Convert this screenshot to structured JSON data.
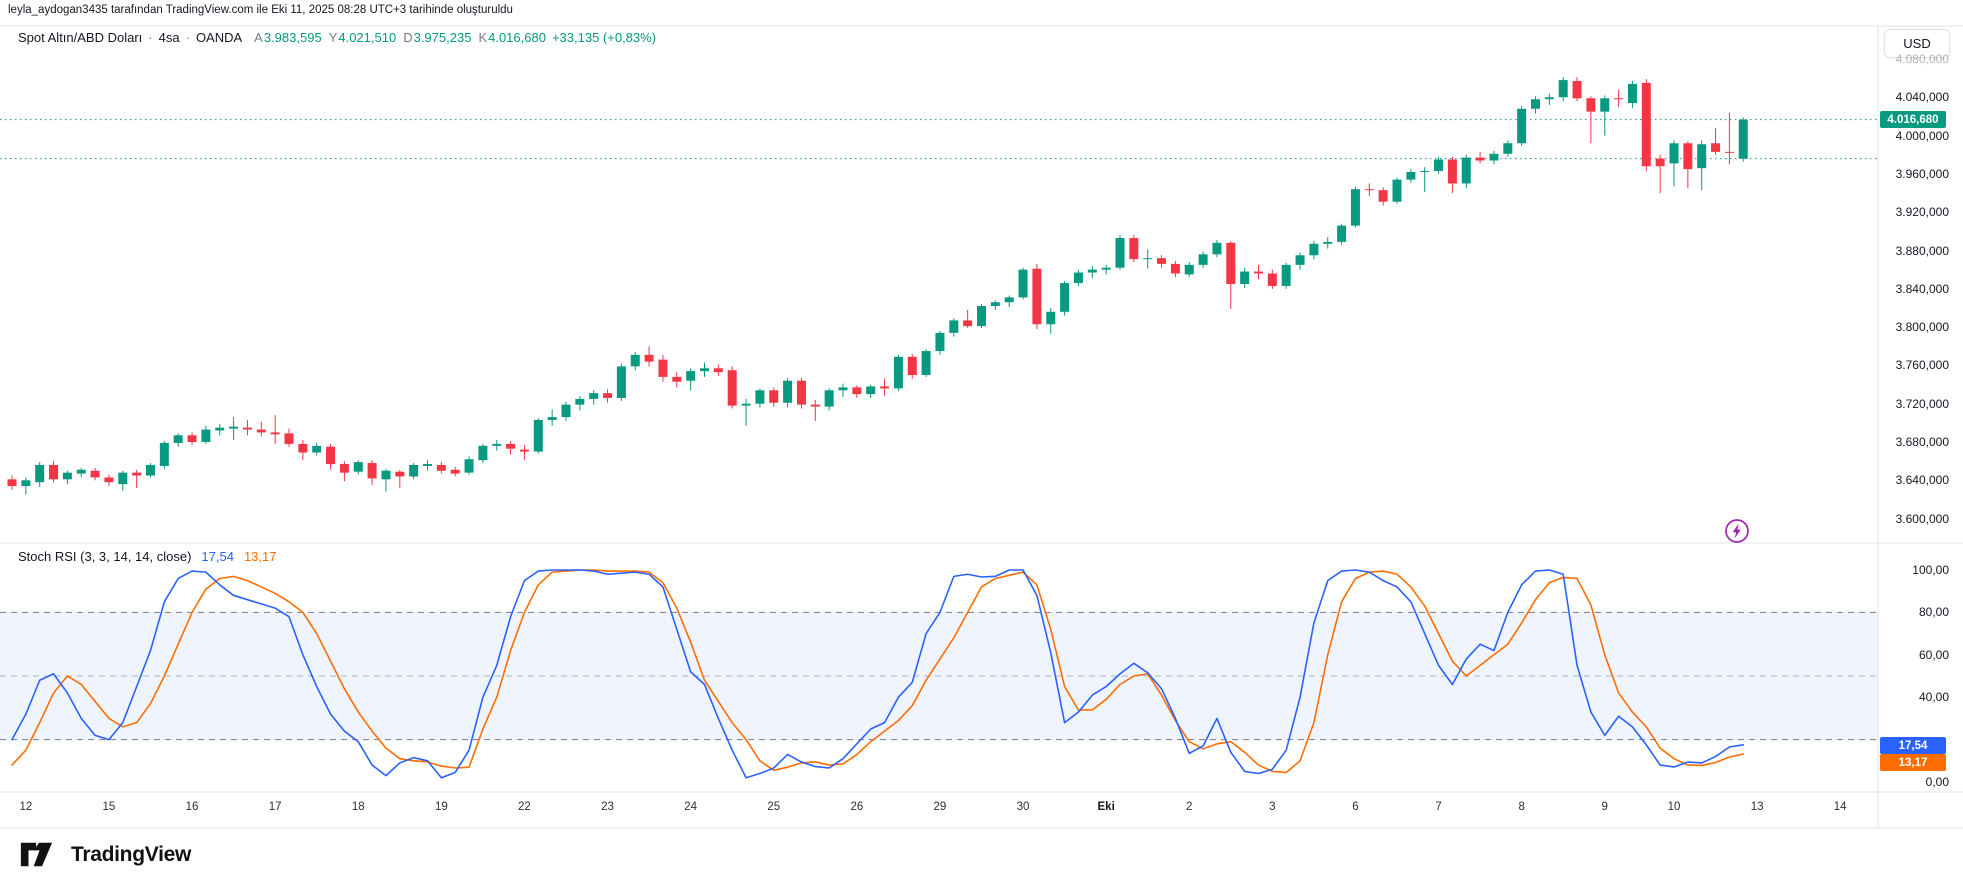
{
  "header": {
    "attribution": "leyla_aydogan3435 tarafından TradingView.com ile Eki 11, 2025 08:28 UTC+3 tarihinde oluşturuldu"
  },
  "main_legend": {
    "symbol": "Spot Altın/ABD Doları",
    "sep1": "·",
    "interval": "4sa",
    "sep2": "·",
    "exchange": "OANDA",
    "ohlc": [
      {
        "label": "A",
        "value": "3.983,595"
      },
      {
        "label": "Y",
        "value": "4.021,510"
      },
      {
        "label": "D",
        "value": "3.975,235"
      },
      {
        "label": "K",
        "value": "4.016,680"
      }
    ],
    "change": "+33,135 (+0,83%)"
  },
  "rsi_legend": {
    "title": "Stoch RSI (3, 3, 14, 14, close)",
    "k_value": "17,54",
    "d_value": "13,17"
  },
  "currency_button": "USD",
  "logo": {
    "text": "TradingView"
  },
  "price_scale": {
    "labels": [
      {
        "text": "4.080,000",
        "value": 4080,
        "faded": true
      },
      {
        "text": "4.040,000",
        "value": 4040
      },
      {
        "text": "4.000,000",
        "value": 4000
      },
      {
        "text": "3.960,000",
        "value": 3960
      },
      {
        "text": "3.920,000",
        "value": 3920
      },
      {
        "text": "3.880,000",
        "value": 3880
      },
      {
        "text": "3.840,000",
        "value": 3840
      },
      {
        "text": "3.800,000",
        "value": 3800
      },
      {
        "text": "3.760,000",
        "value": 3760
      },
      {
        "text": "3.720,000",
        "value": 3720
      },
      {
        "text": "3.680,000",
        "value": 3680
      },
      {
        "text": "3.640,000",
        "value": 3640
      },
      {
        "text": "3.600,000",
        "value": 3600
      }
    ],
    "badge": {
      "text": "4.016,680",
      "value": 4016.68
    }
  },
  "rsi_scale": {
    "labels": [
      {
        "text": "100,00",
        "value": 100
      },
      {
        "text": "80,00",
        "value": 80
      },
      {
        "text": "60,00",
        "value": 60
      },
      {
        "text": "40,00",
        "value": 40
      },
      {
        "text": "0,00",
        "value": 0
      }
    ],
    "k_badge": {
      "text": "17,54",
      "value": 17.54
    },
    "d_badge": {
      "text": "13,17",
      "value": 13.17
    }
  },
  "time_scale": {
    "ticks": [
      {
        "label": "12",
        "bar": 1
      },
      {
        "label": "15",
        "bar": 7
      },
      {
        "label": "16",
        "bar": 13
      },
      {
        "label": "17",
        "bar": 19
      },
      {
        "label": "18",
        "bar": 25
      },
      {
        "label": "19",
        "bar": 31
      },
      {
        "label": "22",
        "bar": 37
      },
      {
        "label": "23",
        "bar": 43
      },
      {
        "label": "24",
        "bar": 49
      },
      {
        "label": "25",
        "bar": 55
      },
      {
        "label": "26",
        "bar": 61
      },
      {
        "label": "29",
        "bar": 67
      },
      {
        "label": "30",
        "bar": 73
      },
      {
        "label": "Eki",
        "bar": 79,
        "bold": true
      },
      {
        "label": "2",
        "bar": 85
      },
      {
        "label": "3",
        "bar": 91
      },
      {
        "label": "6",
        "bar": 97
      },
      {
        "label": "7",
        "bar": 103
      },
      {
        "label": "8",
        "bar": 109
      },
      {
        "label": "9",
        "bar": 115
      },
      {
        "label": "10",
        "bar": 120
      },
      {
        "label": "13",
        "bar": 126
      },
      {
        "label": "14",
        "bar": 132
      }
    ]
  },
  "colors": {
    "up": "#089981",
    "down": "#f23645",
    "k_line": "#2962ff",
    "d_line": "#ff6d00",
    "band_fill": "#2962ff",
    "dashed": "#787b86",
    "mid_dashed": "#b2b5be",
    "price_line": "#089981",
    "border": "#e0e3eb",
    "badge_price": "#089981",
    "badge_k": "#2962ff",
    "badge_d": "#ff6d00",
    "lightning": "#9c27b0"
  },
  "chart_data": {
    "type": "candlestick+line",
    "title": "Spot Altın/ABD Doları · 4sa · OANDA",
    "legend_ohlc": {
      "open": 3983.595,
      "high": 4021.51,
      "low": 3975.235,
      "close": 4016.68,
      "change": 33.135,
      "change_pct": 0.83
    },
    "price_axis_range_labels": [
      3600,
      4080
    ],
    "price_lines": [
      4016.68,
      3976.0
    ],
    "rsi_levels": {
      "upper": 80,
      "middle": 50,
      "lower": 20,
      "range": [
        0,
        100
      ]
    },
    "series_names": [
      "%K (blue)",
      "%D (orange)"
    ],
    "stoch_rsi_last": {
      "k": 17.54,
      "d": 13.17
    },
    "candles": [
      [
        3641,
        3645,
        3630,
        3634
      ],
      [
        3634,
        3643,
        3625,
        3640
      ],
      [
        3638,
        3659,
        3633,
        3656
      ],
      [
        3656,
        3660,
        3638,
        3641
      ],
      [
        3641,
        3650,
        3636,
        3648
      ],
      [
        3647,
        3653,
        3643,
        3651
      ],
      [
        3650,
        3653,
        3640,
        3643
      ],
      [
        3643,
        3646,
        3634,
        3638
      ],
      [
        3636,
        3650,
        3629,
        3648
      ],
      [
        3648,
        3651,
        3632,
        3645
      ],
      [
        3645,
        3658,
        3643,
        3656
      ],
      [
        3655,
        3681,
        3652,
        3679
      ],
      [
        3679,
        3689,
        3675,
        3687
      ],
      [
        3687,
        3690,
        3677,
        3680
      ],
      [
        3680,
        3697,
        3678,
        3693
      ],
      [
        3692,
        3699,
        3687,
        3695
      ],
      [
        3694,
        3706,
        3682,
        3696
      ],
      [
        3695,
        3703,
        3687,
        3693
      ],
      [
        3693,
        3701,
        3686,
        3690
      ],
      [
        3690,
        3708,
        3678,
        3688
      ],
      [
        3689,
        3694,
        3675,
        3678
      ],
      [
        3678,
        3682,
        3661,
        3669
      ],
      [
        3669,
        3679,
        3666,
        3676
      ],
      [
        3675,
        3678,
        3651,
        3657
      ],
      [
        3657,
        3660,
        3639,
        3648
      ],
      [
        3649,
        3661,
        3646,
        3659
      ],
      [
        3658,
        3661,
        3635,
        3642
      ],
      [
        3641,
        3652,
        3628,
        3650
      ],
      [
        3649,
        3651,
        3632,
        3644
      ],
      [
        3644,
        3658,
        3641,
        3656
      ],
      [
        3655,
        3661,
        3650,
        3657
      ],
      [
        3656,
        3659,
        3647,
        3650
      ],
      [
        3651,
        3654,
        3644,
        3647
      ],
      [
        3648,
        3665,
        3646,
        3662
      ],
      [
        3661,
        3678,
        3658,
        3676
      ],
      [
        3676,
        3682,
        3671,
        3678
      ],
      [
        3678,
        3681,
        3667,
        3673
      ],
      [
        3672,
        3677,
        3661,
        3670
      ],
      [
        3670,
        3705,
        3668,
        3703
      ],
      [
        3703,
        3714,
        3697,
        3706
      ],
      [
        3706,
        3722,
        3702,
        3719
      ],
      [
        3719,
        3728,
        3713,
        3725
      ],
      [
        3725,
        3734,
        3719,
        3731
      ],
      [
        3731,
        3735,
        3721,
        3726
      ],
      [
        3726,
        3762,
        3723,
        3759
      ],
      [
        3759,
        3774,
        3755,
        3771
      ],
      [
        3771,
        3780,
        3759,
        3764
      ],
      [
        3766,
        3771,
        3743,
        3748
      ],
      [
        3748,
        3753,
        3737,
        3743
      ],
      [
        3744,
        3757,
        3734,
        3754
      ],
      [
        3754,
        3763,
        3748,
        3757
      ],
      [
        3757,
        3761,
        3749,
        3753
      ],
      [
        3755,
        3759,
        3715,
        3718
      ],
      [
        3718,
        3725,
        3697,
        3720
      ],
      [
        3720,
        3736,
        3716,
        3734
      ],
      [
        3734,
        3737,
        3717,
        3721
      ],
      [
        3721,
        3747,
        3716,
        3744
      ],
      [
        3744,
        3747,
        3715,
        3719
      ],
      [
        3719,
        3724,
        3702,
        3717
      ],
      [
        3717,
        3736,
        3713,
        3734
      ],
      [
        3734,
        3741,
        3727,
        3737
      ],
      [
        3737,
        3739,
        3726,
        3730
      ],
      [
        3730,
        3740,
        3726,
        3738
      ],
      [
        3738,
        3746,
        3728,
        3736
      ],
      [
        3736,
        3771,
        3733,
        3769
      ],
      [
        3769,
        3772,
        3746,
        3750
      ],
      [
        3750,
        3777,
        3748,
        3775
      ],
      [
        3775,
        3796,
        3771,
        3794
      ],
      [
        3794,
        3809,
        3790,
        3807
      ],
      [
        3807,
        3818,
        3799,
        3801
      ],
      [
        3801,
        3824,
        3799,
        3822
      ],
      [
        3822,
        3828,
        3818,
        3826
      ],
      [
        3826,
        3833,
        3821,
        3831
      ],
      [
        3831,
        3862,
        3829,
        3860
      ],
      [
        3861,
        3866,
        3798,
        3803
      ],
      [
        3803,
        3820,
        3793,
        3816
      ],
      [
        3816,
        3848,
        3812,
        3846
      ],
      [
        3846,
        3860,
        3843,
        3857
      ],
      [
        3857,
        3864,
        3851,
        3860
      ],
      [
        3860,
        3865,
        3855,
        3862
      ],
      [
        3862,
        3896,
        3860,
        3893
      ],
      [
        3893,
        3896,
        3868,
        3871
      ],
      [
        3871,
        3881,
        3861,
        3872
      ],
      [
        3872,
        3875,
        3862,
        3866
      ],
      [
        3866,
        3869,
        3852,
        3856
      ],
      [
        3855,
        3868,
        3852,
        3865
      ],
      [
        3865,
        3879,
        3862,
        3876
      ],
      [
        3876,
        3891,
        3873,
        3888
      ],
      [
        3888,
        3890,
        3819,
        3845
      ],
      [
        3845,
        3862,
        3841,
        3858
      ],
      [
        3858,
        3865,
        3850,
        3856
      ],
      [
        3856,
        3860,
        3840,
        3843
      ],
      [
        3843,
        3867,
        3840,
        3865
      ],
      [
        3865,
        3878,
        3860,
        3875
      ],
      [
        3875,
        3890,
        3871,
        3887
      ],
      [
        3887,
        3894,
        3882,
        3889
      ],
      [
        3889,
        3908,
        3886,
        3906
      ],
      [
        3906,
        3947,
        3904,
        3944
      ],
      [
        3944,
        3950,
        3937,
        3943
      ],
      [
        3943,
        3946,
        3927,
        3931
      ],
      [
        3931,
        3956,
        3929,
        3954
      ],
      [
        3954,
        3965,
        3951,
        3962
      ],
      [
        3962,
        3967,
        3941,
        3963
      ],
      [
        3963,
        3978,
        3960,
        3975
      ],
      [
        3975,
        3978,
        3940,
        3950
      ],
      [
        3950,
        3980,
        3945,
        3977
      ],
      [
        3977,
        3983,
        3971,
        3974
      ],
      [
        3974,
        3984,
        3970,
        3981
      ],
      [
        3981,
        3995,
        3978,
        3992
      ],
      [
        3992,
        4031,
        3989,
        4028
      ],
      [
        4028,
        4041,
        4023,
        4038
      ],
      [
        4038,
        4044,
        4032,
        4040
      ],
      [
        4040,
        4061,
        4036,
        4058
      ],
      [
        4057,
        4061,
        4036,
        4039
      ],
      [
        4039,
        4041,
        3992,
        4025
      ],
      [
        4025,
        4042,
        4000,
        4039
      ],
      [
        4039,
        4048,
        4030,
        4038
      ],
      [
        4034,
        4057,
        4029,
        4054
      ],
      [
        4055,
        4059,
        3963,
        3968
      ],
      [
        3976,
        3980,
        3940,
        3968
      ],
      [
        3971,
        3995,
        3947,
        3992
      ],
      [
        3992,
        3994,
        3945,
        3965
      ],
      [
        3966,
        3995,
        3943,
        3991
      ],
      [
        3992,
        4008,
        3980,
        3983
      ],
      [
        3983,
        4024,
        3970,
        3982
      ],
      [
        3976,
        4019,
        3973,
        4016.68
      ]
    ],
    "stoch_rsi_k": [
      20,
      32,
      48,
      51,
      42,
      30,
      22,
      20,
      28,
      45,
      62,
      85,
      96,
      99.5,
      99,
      93,
      88,
      86,
      84,
      82,
      78,
      60,
      45,
      32,
      24,
      19,
      8,
      3,
      9,
      11.5,
      10,
      2,
      4.5,
      15,
      40,
      55,
      78,
      95,
      99.5,
      100,
      100,
      100,
      99.5,
      98,
      98.5,
      99,
      98,
      92,
      72,
      52,
      46,
      30,
      15,
      2,
      4,
      6.6,
      13,
      9.4,
      7.3,
      6.6,
      11,
      18,
      25,
      28,
      40,
      47,
      70,
      80,
      97,
      98,
      96.7,
      97,
      100,
      100,
      88,
      61,
      28,
      33,
      41,
      45,
      51,
      56,
      51.5,
      44,
      30,
      13.5,
      17,
      30,
      14,
      5,
      4,
      6,
      15,
      40,
      75,
      95,
      99.5,
      100,
      99,
      95,
      92,
      85,
      70,
      55,
      46,
      58,
      65,
      62,
      80,
      93,
      99.5,
      100,
      98,
      55,
      33,
      22,
      31,
      26,
      17.5,
      8,
      7.1,
      9.4,
      9,
      12,
      16.5,
      17.54
    ],
    "stoch_rsi_d": [
      8,
      15,
      28,
      42,
      50,
      46,
      38,
      30,
      26,
      28,
      37,
      50,
      65,
      80,
      91,
      96,
      97,
      95,
      92,
      89,
      85,
      80,
      70,
      57,
      44,
      33,
      24,
      16,
      11,
      10,
      9.5,
      7.5,
      6.6,
      7,
      25,
      40,
      62,
      80,
      93,
      99,
      99.5,
      100,
      100,
      99.5,
      99.5,
      99.5,
      99,
      94,
      82,
      66,
      48,
      38,
      28,
      20,
      10,
      5.5,
      7,
      9,
      9.5,
      8,
      8.5,
      13,
      19,
      24,
      29,
      36,
      48,
      58,
      68,
      80,
      92,
      96,
      97.5,
      99,
      93,
      72,
      45,
      34,
      34,
      39,
      46,
      50,
      51,
      41,
      29,
      19,
      15.6,
      18,
      19,
      14,
      8,
      5,
      4.5,
      10,
      28,
      60,
      85,
      96,
      99,
      99.5,
      98,
      92,
      83,
      70,
      57,
      50,
      55,
      60,
      65,
      75,
      86,
      94,
      96.5,
      96,
      83.5,
      60,
      42,
      33,
      26,
      16,
      11,
      8,
      7.8,
      9.2,
      11.8,
      13.17
    ]
  }
}
